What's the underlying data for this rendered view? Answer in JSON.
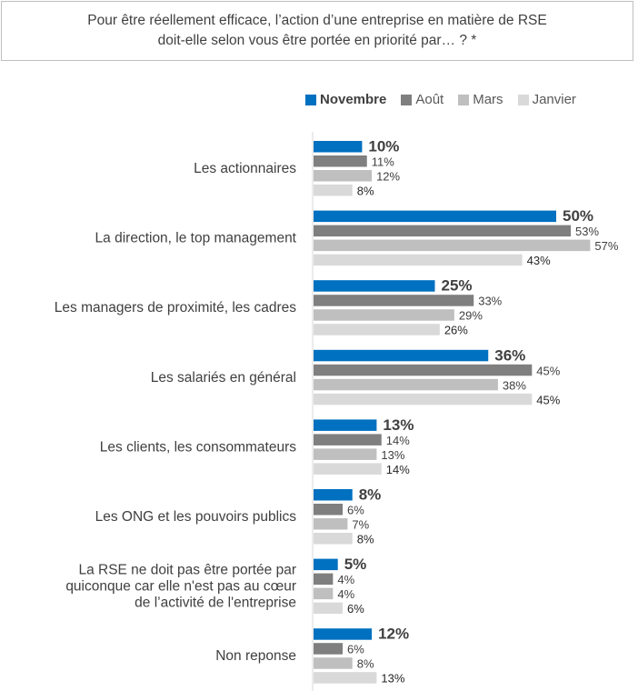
{
  "question": {
    "line1": "Pour être réellement efficace, l’action d’une entreprise en matière de RSE",
    "line2": "doit-elle selon vous être portée en priorité par… ? *"
  },
  "chart_data": {
    "type": "bar",
    "orientation": "horizontal",
    "categories": [
      [
        "Les actionnaires"
      ],
      [
        "La direction, le top management"
      ],
      [
        "Les managers de proximité, les cadres"
      ],
      [
        "Les salariés en général"
      ],
      [
        "Les clients, les consommateurs"
      ],
      [
        "Les ONG et les pouvoirs publics"
      ],
      [
        "La RSE ne doit pas être portée par",
        "quiconque car elle n'est pas au cœur",
        "de l’activité de l'entreprise"
      ],
      [
        "Non reponse"
      ]
    ],
    "series": [
      {
        "name": "Novembre",
        "color": "#0070C0",
        "values": [
          10,
          50,
          25,
          36,
          13,
          8,
          5,
          12
        ]
      },
      {
        "name": "Août",
        "color": "#7F7F7F",
        "values": [
          11,
          53,
          33,
          45,
          14,
          6,
          4,
          6
        ]
      },
      {
        "name": "Mars",
        "color": "#BFBFBF",
        "values": [
          12,
          57,
          29,
          38,
          13,
          7,
          4,
          8
        ]
      },
      {
        "name": "Janvier",
        "color": "#D9D9D9",
        "values": [
          8,
          43,
          26,
          45,
          14,
          8,
          6,
          13
        ]
      }
    ],
    "value_suffix": "%",
    "legend_position": "top-right",
    "grid": false
  }
}
